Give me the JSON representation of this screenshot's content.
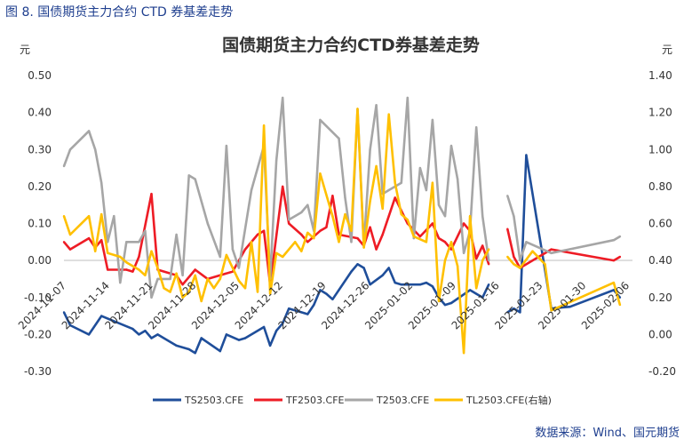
{
  "figure_caption": "图 8.  国债期货主力合约 CTD 券基差走势",
  "source_note": "数据来源：Wind、国元期货",
  "chart_data": {
    "type": "line",
    "title": "国债期货主力合约CTD券基差走势",
    "left_unit": "元",
    "right_unit": "元",
    "ylim_left": [
      -0.3,
      0.5
    ],
    "ylim_right": [
      -0.2,
      1.4
    ],
    "yticks_left": [
      "0.50",
      "0.40",
      "0.30",
      "0.20",
      "0.10",
      "0.00",
      "-0.10",
      "-0.20",
      "-0.30"
    ],
    "yticks_right": [
      "1.40",
      "1.20",
      "1.00",
      "0.80",
      "0.60",
      "0.40",
      "0.20",
      "0.00",
      "-0.20"
    ],
    "xticks": [
      "2024-11-07",
      "2024-11-14",
      "2024-11-21",
      "2024-11-28",
      "2024-12-05",
      "2024-12-12",
      "2024-12-19",
      "2024-12-26",
      "2025-01-02",
      "2025-01-09",
      "2025-01-16",
      "2025-01-23",
      "2025-01-30",
      "2025-02-06"
    ],
    "xlim": [
      0,
      91
    ],
    "legend_position": "bottom",
    "series": [
      {
        "name": "TS2503.CFE",
        "axis": "left",
        "color": "#1f4e9a",
        "points": [
          [
            0,
            -0.14
          ],
          [
            1,
            -0.175
          ],
          [
            4,
            -0.2
          ],
          [
            6,
            -0.15
          ],
          [
            11,
            -0.185
          ],
          [
            12,
            -0.2
          ],
          [
            13,
            -0.19
          ],
          [
            14,
            -0.21
          ],
          [
            15,
            -0.2
          ],
          [
            18,
            -0.23
          ],
          [
            20,
            -0.24
          ],
          [
            21,
            -0.25
          ],
          [
            22,
            -0.21
          ],
          [
            25,
            -0.245
          ],
          [
            26,
            -0.2
          ],
          [
            28,
            -0.215
          ],
          [
            29,
            -0.21
          ],
          [
            32,
            -0.18
          ],
          [
            33,
            -0.23
          ],
          [
            34,
            -0.19
          ],
          [
            35,
            -0.17
          ],
          [
            36,
            -0.13
          ],
          [
            38,
            -0.14
          ],
          [
            39,
            -0.145
          ],
          [
            40,
            -0.12
          ],
          [
            41,
            -0.08
          ],
          [
            42,
            -0.09
          ],
          [
            43,
            -0.105
          ],
          [
            46,
            -0.03
          ],
          [
            47,
            -0.01
          ],
          [
            48,
            -0.02
          ],
          [
            49,
            -0.065
          ],
          [
            51,
            -0.04
          ],
          [
            52,
            -0.02
          ],
          [
            53,
            -0.06
          ],
          [
            54,
            -0.065
          ],
          [
            57,
            -0.065
          ],
          [
            58,
            -0.06
          ],
          [
            59,
            -0.07
          ],
          [
            60,
            -0.1
          ],
          [
            61,
            -0.12
          ],
          [
            62,
            -0.115
          ],
          [
            65,
            -0.08
          ],
          [
            66,
            -0.09
          ],
          [
            67,
            -0.1
          ],
          [
            68,
            -0.065
          ],
          null,
          [
            71,
            -0.14
          ],
          [
            72,
            -0.13
          ],
          [
            73,
            -0.14
          ],
          [
            74,
            0.285
          ],
          [
            78,
            -0.13
          ],
          [
            81,
            -0.125
          ],
          [
            88,
            -0.08
          ],
          [
            89,
            -0.1
          ]
        ]
      },
      {
        "name": "TF2503.CFE",
        "axis": "left",
        "color": "#ee1c25",
        "points": [
          [
            0,
            0.05
          ],
          [
            1,
            0.03
          ],
          [
            4,
            0.06
          ],
          [
            5,
            0.035
          ],
          [
            6,
            0.055
          ],
          [
            7,
            -0.025
          ],
          [
            10,
            -0.025
          ],
          [
            11,
            -0.03
          ],
          [
            12,
            0.01
          ],
          [
            14,
            0.18
          ],
          [
            15,
            -0.025
          ],
          [
            18,
            -0.04
          ],
          [
            19,
            -0.065
          ],
          [
            21,
            -0.025
          ],
          [
            23,
            -0.05
          ],
          [
            25,
            -0.04
          ],
          [
            27,
            -0.03
          ],
          [
            29,
            0.03
          ],
          [
            31,
            0.07
          ],
          [
            32,
            0.08
          ],
          [
            33,
            -0.065
          ],
          [
            35,
            0.2
          ],
          [
            36,
            0.1
          ],
          [
            38,
            0.07
          ],
          [
            39,
            0.05
          ],
          [
            41,
            0.08
          ],
          [
            42,
            0.09
          ],
          [
            43,
            0.175
          ],
          [
            44,
            0.07
          ],
          [
            47,
            0.06
          ],
          [
            48,
            0.04
          ],
          [
            49,
            0.09
          ],
          [
            50,
            0.03
          ],
          [
            51,
            0.07
          ],
          [
            52,
            0.12
          ],
          [
            53,
            0.17
          ],
          [
            55,
            0.1
          ],
          [
            57,
            0.065
          ],
          [
            59,
            0.1
          ],
          [
            60,
            0.06
          ],
          [
            61,
            0.05
          ],
          [
            62,
            0.03
          ],
          [
            64,
            0.1
          ],
          [
            65,
            0.08
          ],
          [
            66,
            0.005
          ],
          [
            67,
            0.04
          ],
          [
            68,
            -0.01
          ],
          null,
          [
            71,
            0.085
          ],
          [
            72,
            0.01
          ],
          [
            73,
            -0.02
          ],
          [
            78,
            0.03
          ],
          [
            88,
            0.0
          ],
          [
            89,
            0.01
          ]
        ]
      },
      {
        "name": "T2503.CFE",
        "axis": "left",
        "color": "#a6a6a6",
        "points": [
          [
            0,
            0.255
          ],
          [
            1,
            0.3
          ],
          [
            4,
            0.35
          ],
          [
            5,
            0.3
          ],
          [
            6,
            0.21
          ],
          [
            7,
            0.05
          ],
          [
            8,
            0.12
          ],
          [
            9,
            -0.06
          ],
          [
            10,
            0.05
          ],
          [
            12,
            0.05
          ],
          [
            13,
            0.08
          ],
          [
            14,
            -0.1
          ],
          [
            15,
            -0.05
          ],
          [
            17,
            -0.05
          ],
          [
            18,
            0.07
          ],
          [
            19,
            -0.04
          ],
          [
            20,
            0.23
          ],
          [
            21,
            0.22
          ],
          [
            23,
            0.1
          ],
          [
            25,
            0.01
          ],
          [
            26,
            0.31
          ],
          [
            27,
            0.03
          ],
          [
            28,
            -0.02
          ],
          [
            30,
            0.19
          ],
          [
            32,
            0.31
          ],
          [
            33,
            -0.05
          ],
          [
            34,
            0.27
          ],
          [
            35,
            0.44
          ],
          [
            36,
            0.11
          ],
          [
            38,
            0.13
          ],
          [
            39,
            0.15
          ],
          [
            40,
            0.08
          ],
          [
            41,
            0.38
          ],
          [
            44,
            0.33
          ],
          [
            45,
            0.17
          ],
          [
            46,
            0.05
          ],
          [
            47,
            0.41
          ],
          [
            48,
            0.04
          ],
          [
            49,
            0.3
          ],
          [
            50,
            0.42
          ],
          [
            51,
            0.18
          ],
          [
            52,
            0.19
          ],
          [
            53,
            0.2
          ],
          [
            54,
            0.21
          ],
          [
            55,
            0.44
          ],
          [
            56,
            0.06
          ],
          [
            57,
            0.25
          ],
          [
            58,
            0.19
          ],
          [
            59,
            0.38
          ],
          [
            60,
            0.15
          ],
          [
            61,
            0.12
          ],
          [
            62,
            0.31
          ],
          [
            63,
            0.22
          ],
          [
            64,
            0.02
          ],
          [
            65,
            0.08
          ],
          [
            66,
            0.36
          ],
          [
            67,
            0.12
          ],
          [
            68,
            0.0
          ],
          null,
          [
            71,
            0.175
          ],
          [
            72,
            0.12
          ],
          [
            73,
            0.0
          ],
          [
            74,
            0.05
          ],
          [
            78,
            0.02
          ],
          [
            88,
            0.055
          ],
          [
            89,
            0.065
          ]
        ]
      },
      {
        "name": "TL2503.CFE(右轴)",
        "axis": "right",
        "color": "#ffc000",
        "points": [
          [
            0,
            0.64
          ],
          [
            1,
            0.54
          ],
          [
            4,
            0.64
          ],
          [
            5,
            0.45
          ],
          [
            6,
            0.65
          ],
          [
            7,
            0.44
          ],
          [
            9,
            0.42
          ],
          [
            10,
            0.39
          ],
          [
            11,
            0.37
          ],
          [
            12,
            0.35
          ],
          [
            13,
            0.32
          ],
          [
            14,
            0.45
          ],
          [
            15,
            0.36
          ],
          [
            16,
            0.25
          ],
          [
            17,
            0.23
          ],
          [
            18,
            0.33
          ],
          [
            19,
            0.2
          ],
          [
            20,
            0.23
          ],
          [
            21,
            0.32
          ],
          [
            22,
            0.18
          ],
          [
            23,
            0.3
          ],
          [
            24,
            0.25
          ],
          [
            25,
            0.3
          ],
          [
            26,
            0.43
          ],
          [
            28,
            0.29
          ],
          [
            29,
            0.25
          ],
          [
            30,
            0.5
          ],
          [
            31,
            0.23
          ],
          [
            32,
            1.13
          ],
          [
            33,
            0.22
          ],
          [
            34,
            0.44
          ],
          [
            35,
            0.42
          ],
          [
            37,
            0.5
          ],
          [
            38,
            0.45
          ],
          [
            39,
            0.55
          ],
          [
            40,
            0.52
          ],
          [
            41,
            0.87
          ],
          [
            43,
            0.64
          ],
          [
            44,
            0.5
          ],
          [
            45,
            0.65
          ],
          [
            46,
            0.56
          ],
          [
            47,
            1.22
          ],
          [
            48,
            0.47
          ],
          [
            49,
            0.72
          ],
          [
            50,
            0.91
          ],
          [
            51,
            0.68
          ],
          [
            52,
            1.19
          ],
          [
            53,
            0.82
          ],
          [
            54,
            0.65
          ],
          [
            55,
            0.62
          ],
          [
            56,
            0.53
          ],
          [
            58,
            0.5
          ],
          [
            59,
            0.82
          ],
          [
            60,
            0.18
          ],
          [
            61,
            0.4
          ],
          [
            62,
            0.5
          ],
          [
            63,
            0.37
          ],
          [
            64,
            -0.1
          ],
          [
            65,
            0.64
          ],
          [
            66,
            0.25
          ],
          [
            67,
            0.4
          ],
          [
            68,
            0.46
          ],
          null,
          [
            71,
            0.42
          ],
          [
            72,
            0.38
          ],
          [
            73,
            0.36
          ],
          [
            75,
            0.45
          ],
          [
            77,
            0.38
          ],
          [
            78,
            0.13
          ],
          [
            88,
            0.28
          ],
          [
            89,
            0.16
          ]
        ]
      }
    ]
  }
}
